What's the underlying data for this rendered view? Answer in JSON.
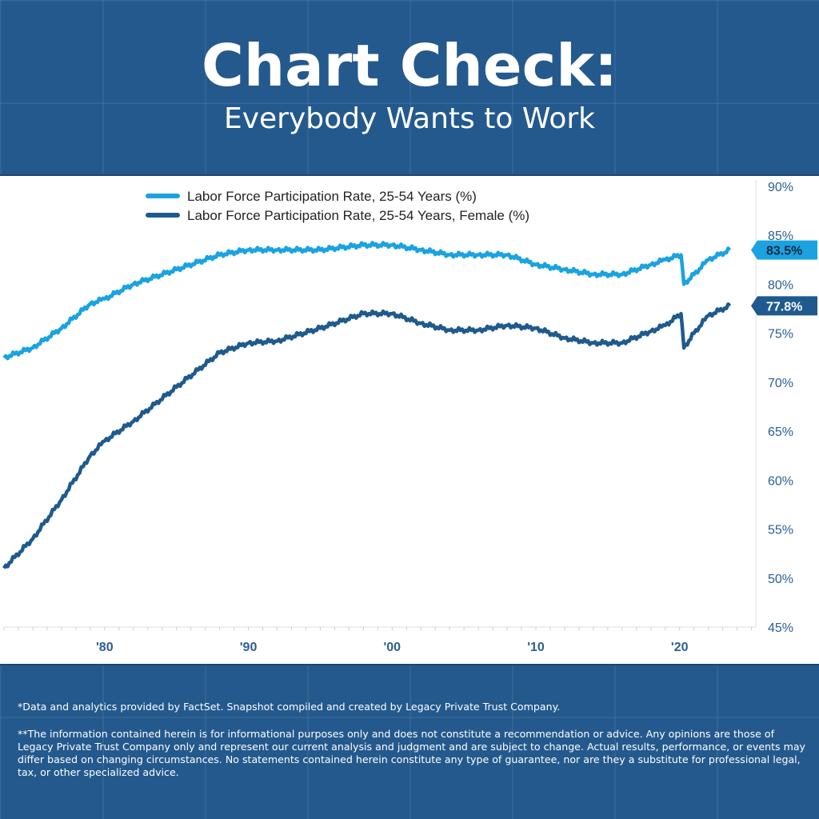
{
  "header": {
    "title": "Chart Check:",
    "subtitle": "Everybody Wants to Work"
  },
  "chart_data": {
    "type": "line",
    "title": "",
    "xlabel": "",
    "ylabel": "",
    "xlim": [
      1973,
      2025.3
    ],
    "ylim": [
      45,
      90
    ],
    "x_ticks": [
      {
        "value": 1980,
        "label": "'80"
      },
      {
        "value": 1990,
        "label": "'90"
      },
      {
        "value": 2000,
        "label": "'00"
      },
      {
        "value": 2010,
        "label": "'10"
      },
      {
        "value": 2020,
        "label": "'20"
      }
    ],
    "y_ticks": [
      {
        "value": 90,
        "label": "90%"
      },
      {
        "value": 85,
        "label": "85%"
      },
      {
        "value": 80,
        "label": "80%"
      },
      {
        "value": 75,
        "label": "75%"
      },
      {
        "value": 70,
        "label": "70%"
      },
      {
        "value": 65,
        "label": "65%"
      },
      {
        "value": 60,
        "label": "60%"
      },
      {
        "value": 55,
        "label": "55%"
      },
      {
        "value": 50,
        "label": "50%"
      },
      {
        "value": 45,
        "label": "45%"
      }
    ],
    "legend_position": "top-left",
    "x": [
      1973,
      1975,
      1977,
      1979,
      1980,
      1982,
      1985,
      1988,
      1990,
      1992,
      1995,
      1998,
      2000,
      2002,
      2004,
      2006,
      2008,
      2010,
      2012,
      2014,
      2016,
      2018,
      2019,
      2020.1,
      2020.3,
      2021,
      2022,
      2023.5
    ],
    "series": [
      {
        "name": "Labor Force Participation Rate, 25-54 Years (%)",
        "color": "#1aa3e0",
        "end_label": "83.5%",
        "values": [
          72.5,
          73.5,
          75.5,
          78,
          78.5,
          80,
          81.5,
          83,
          83.5,
          83.5,
          83.5,
          84,
          84,
          83.5,
          83,
          83,
          83,
          82,
          81.5,
          81,
          81,
          82,
          82.5,
          83,
          80,
          81,
          82.5,
          83.5
        ]
      },
      {
        "name": "Labor Force Participation Rate, 25-54 Years, Female (%)",
        "color": "#1f5a8e",
        "end_label": "77.8%",
        "values": [
          51,
          54,
          58,
          62.5,
          64,
          66,
          69.5,
          73,
          74,
          74.2,
          75.5,
          77,
          77,
          76,
          75.3,
          75.3,
          75.8,
          75.5,
          74.5,
          74,
          74,
          75.2,
          75.8,
          77,
          73.5,
          75,
          76.8,
          77.8
        ]
      }
    ]
  },
  "footer": {
    "source": "*Data and analytics provided by FactSet. Snapshot compiled and created by Legacy Private Trust Company.",
    "disclaimer": "**The information contained herein is for informational purposes only and does not constitute a recommendation or advice. Any opinions are those of Legacy Private Trust Company only and represent our current analysis and judgment and are subject to change. Actual results, performance, or events may differ based on changing circumstances. No statements contained herein constitute any type of guarantee, nor are they a substitute for professional legal, tax, or other specialized advice."
  }
}
